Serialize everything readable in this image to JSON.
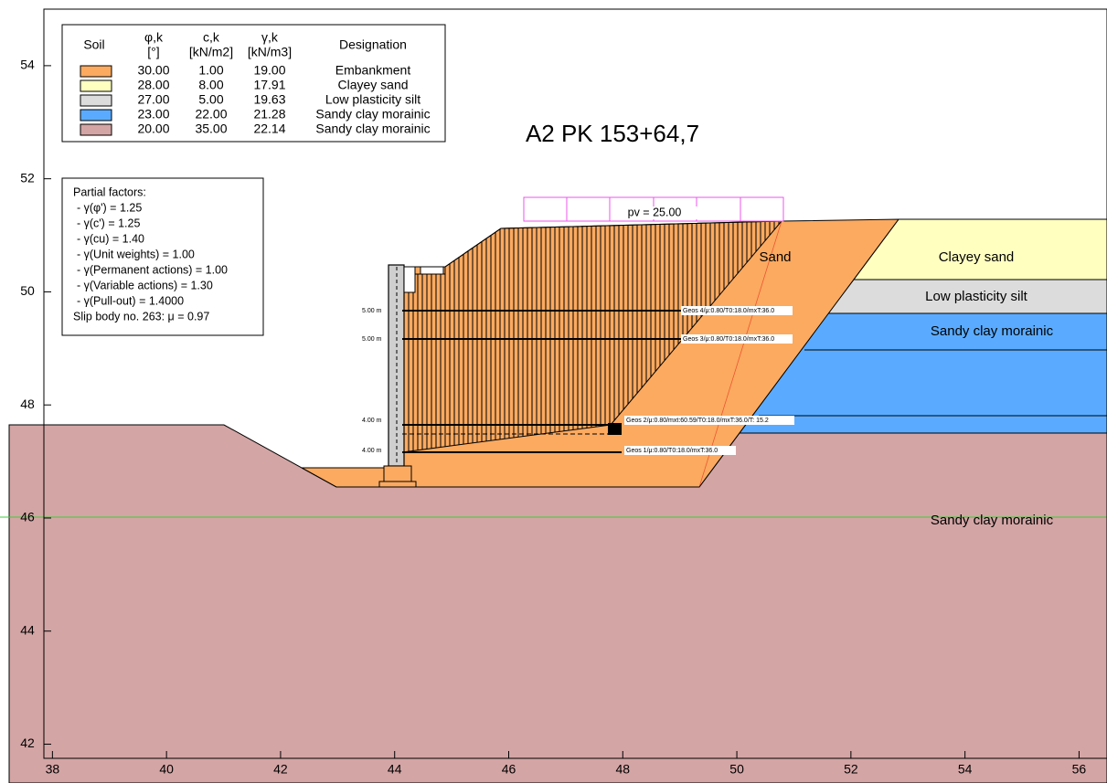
{
  "title": "A2 PK 153+64,7",
  "axes": {
    "xlim": [
      37.85,
      56.49
    ],
    "ylim": [
      41.75,
      55
    ],
    "xticks": [
      38,
      40,
      42,
      44,
      46,
      48,
      50,
      52,
      54,
      56
    ],
    "yticks": [
      42,
      44,
      46,
      48,
      50,
      52,
      54
    ]
  },
  "legend": {
    "headers": {
      "soil": "Soil",
      "phi": "φ,k",
      "phi_unit": "[°]",
      "c": "c,k",
      "c_unit": "[kN/m2]",
      "gamma": "γ,k",
      "gamma_unit": "[kN/m3]",
      "designation": "Designation"
    },
    "rows": [
      {
        "color": "#fbaa60",
        "phi": "30.00",
        "c": "1.00",
        "gamma": "19.00",
        "designation": "Embankment"
      },
      {
        "color": "#ffffc0",
        "phi": "28.00",
        "c": "8.00",
        "gamma": "17.91",
        "designation": "Clayey sand"
      },
      {
        "color": "#dcdcdc",
        "phi": "27.00",
        "c": "5.00",
        "gamma": "19.63",
        "designation": "Low plasticity silt"
      },
      {
        "color": "#5aabff",
        "phi": "23.00",
        "c": "22.00",
        "gamma": "21.28",
        "designation": "Sandy clay morainic"
      },
      {
        "color": "#d4a5a5",
        "phi": "20.00",
        "c": "35.00",
        "gamma": "22.14",
        "designation": "Sandy clay morainic"
      }
    ]
  },
  "partial_factors": {
    "title": "Partial factors:",
    "lines": [
      "- γ(φ') = 1.25",
      "- γ(c') = 1.25",
      "- γ(cu) = 1.40",
      "- γ(Unit weights) = 1.00",
      "- γ(Permanent actions) = 1.00",
      "- γ(Variable actions) = 1.30",
      "- γ(Pull-out) = 1.4000",
      "Slip body no. 263: μ = 0.97"
    ]
  },
  "load_label": "pv = 25.00",
  "region_labels": [
    "Sand",
    "Clayey sand",
    "Low plasticity silt",
    "Sandy clay morainic",
    "Sandy clay morainic"
  ],
  "reinforcements": [
    {
      "depth": "5.00 m",
      "label": "Geos 4/μ:0.80/T0:18.0/mxT:36.0"
    },
    {
      "depth": "5.00 m",
      "label": "Geos 3/μ:0.80/T0:18.0/mxT:36.0"
    },
    {
      "depth": "4.00 m",
      "label": "Geos 2/μ:0.80/mxt:60.59/T0:18.0/mxT:36.0/T: 15.2"
    },
    {
      "depth": "4.00 m",
      "label": "Geos 1/μ:0.80/T0:18.0/mxT:36.0"
    }
  ]
}
